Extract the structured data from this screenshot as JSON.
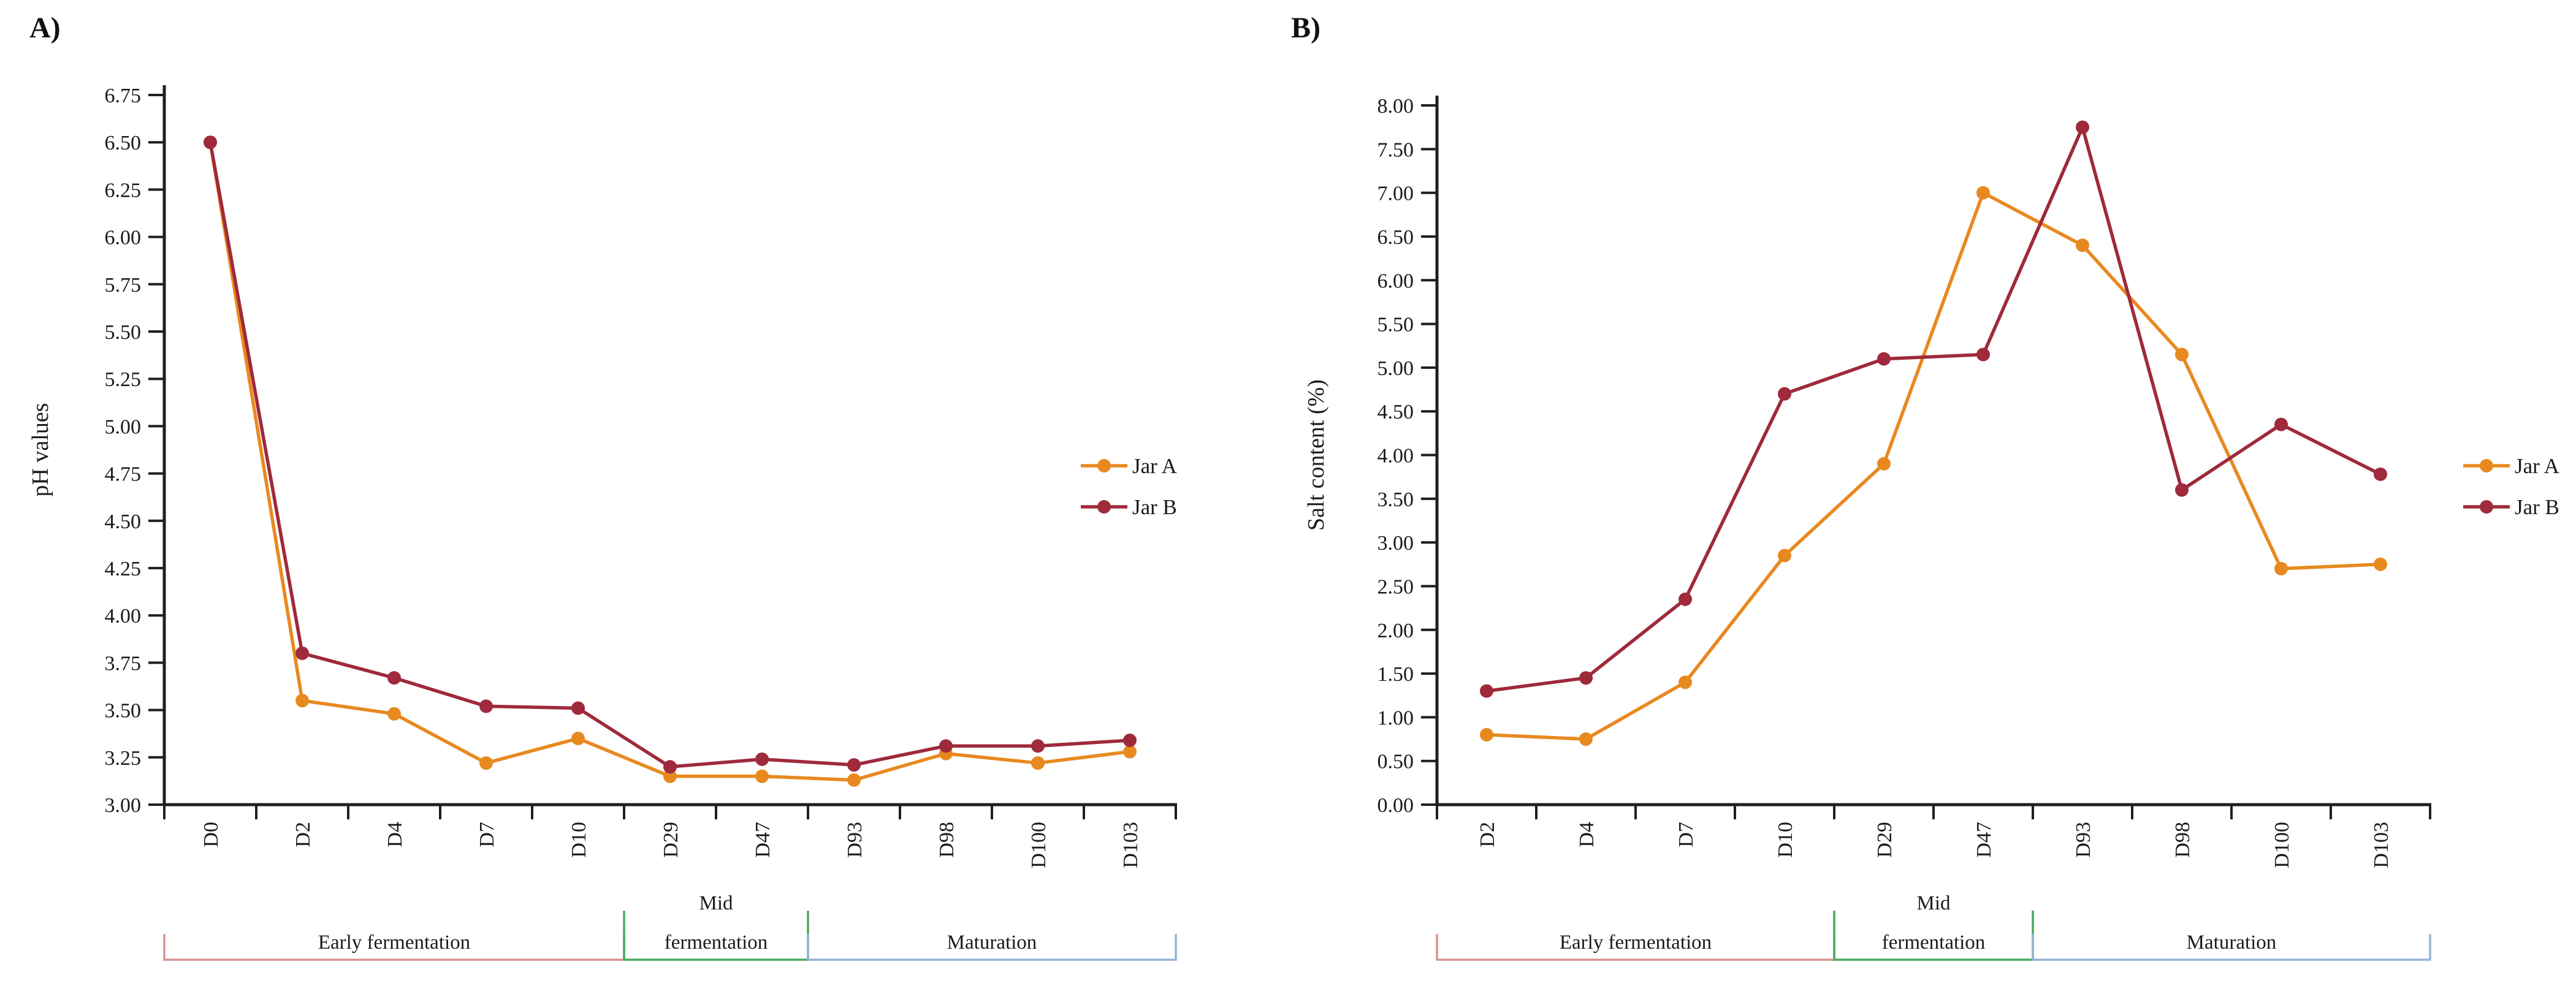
{
  "colors": {
    "jar_a": "#E8891F",
    "jar_b": "#9E2A3B",
    "axis": "#1f1f1f",
    "phase_early": "#D9938F",
    "phase_mid": "#45AC5C",
    "phase_late": "#95B3D7"
  },
  "legend": {
    "entries": [
      "Jar A",
      "Jar B"
    ],
    "position": "right"
  },
  "chart_data": [
    {
      "id": "A",
      "type": "line",
      "panel_label": "A)",
      "title": "",
      "xlabel": "",
      "ylabel": "pH values",
      "ylim": [
        3.0,
        6.75
      ],
      "ytick_step": 0.25,
      "ytick_decimals": 2,
      "grid": false,
      "legend_position": "right",
      "categories": [
        "D0",
        "D2",
        "D4",
        "D7",
        "D10",
        "D29",
        "D47",
        "D93",
        "D98",
        "D100",
        "D103"
      ],
      "series": [
        {
          "name": "Jar A",
          "color_key": "jar_a",
          "values": [
            6.5,
            3.55,
            3.48,
            3.22,
            3.35,
            3.15,
            3.15,
            3.13,
            3.27,
            3.22,
            3.28
          ]
        },
        {
          "name": "Jar B",
          "color_key": "jar_b",
          "values": [
            6.5,
            3.8,
            3.67,
            3.52,
            3.51,
            3.2,
            3.24,
            3.21,
            3.31,
            3.31,
            3.34
          ]
        }
      ],
      "phases": [
        {
          "label": "Early fermentation",
          "label_lines": [
            "Early fermentation"
          ],
          "start_cat": 0,
          "end_cat": 4,
          "color_key": "phase_early"
        },
        {
          "label": "Mid fermentation",
          "label_lines": [
            "Mid",
            "fermentation"
          ],
          "start_cat": 5,
          "end_cat": 6,
          "color_key": "phase_mid"
        },
        {
          "label": "Maturation",
          "label_lines": [
            "Maturation"
          ],
          "start_cat": 7,
          "end_cat": 10,
          "color_key": "phase_late"
        }
      ]
    },
    {
      "id": "B",
      "type": "line",
      "panel_label": "B)",
      "title": "",
      "xlabel": "",
      "ylabel": "Salt content (%)",
      "ylim": [
        0.0,
        8.0
      ],
      "ytick_step": 0.5,
      "ytick_decimals": 2,
      "grid": false,
      "legend_position": "right",
      "categories": [
        "D2",
        "D4",
        "D7",
        "D10",
        "D29",
        "D47",
        "D93",
        "D98",
        "D100",
        "D103"
      ],
      "series": [
        {
          "name": "Jar A",
          "color_key": "jar_a",
          "values": [
            0.8,
            0.75,
            1.4,
            2.85,
            3.9,
            7.0,
            6.4,
            5.15,
            2.7,
            2.75
          ]
        },
        {
          "name": "Jar B",
          "color_key": "jar_b",
          "values": [
            1.3,
            1.45,
            2.35,
            4.7,
            5.1,
            5.15,
            7.75,
            3.6,
            4.35,
            3.78
          ]
        }
      ],
      "phases": [
        {
          "label": "Early fermentation",
          "label_lines": [
            "Early fermentation"
          ],
          "start_cat": 0,
          "end_cat": 3,
          "color_key": "phase_early"
        },
        {
          "label": "Mid fermentation",
          "label_lines": [
            "Mid",
            "fermentation"
          ],
          "start_cat": 4,
          "end_cat": 5,
          "color_key": "phase_mid"
        },
        {
          "label": "Maturation",
          "label_lines": [
            "Maturation"
          ],
          "start_cat": 6,
          "end_cat": 9,
          "color_key": "phase_late"
        }
      ]
    }
  ]
}
